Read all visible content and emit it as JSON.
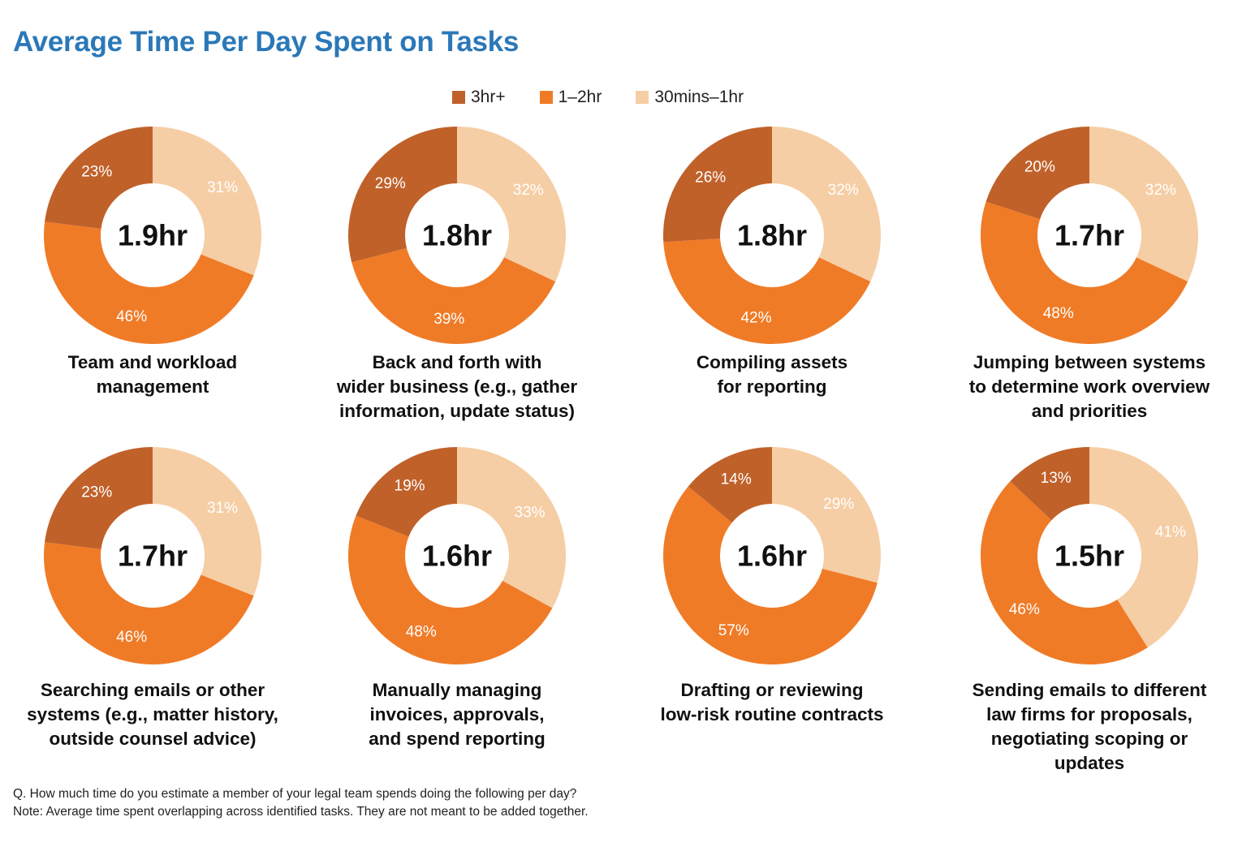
{
  "title": "Average Time Per Day Spent on Tasks",
  "legend": [
    {
      "label": "3hr+",
      "color": "#c0612a"
    },
    {
      "label": "1–2hr",
      "color": "#f07b27"
    },
    {
      "label": "30mins–1hr",
      "color": "#f6cea5"
    }
  ],
  "chart_data": [
    {
      "type": "pie",
      "title": "Team and workload management",
      "center_label": "1.9hr",
      "label_lines": [
        "Team and workload",
        "management"
      ],
      "categories": [
        "30mins–1hr",
        "1–2hr",
        "3hr+"
      ],
      "values": [
        31,
        46,
        23
      ],
      "value_labels": [
        "31%",
        "46%",
        "23%"
      ]
    },
    {
      "type": "pie",
      "title": "Back and forth with wider business (e.g., gather information, update status)",
      "center_label": "1.8hr",
      "label_lines": [
        "Back and forth with",
        "wider business (e.g., gather",
        "information, update status)"
      ],
      "categories": [
        "30mins–1hr",
        "1–2hr",
        "3hr+"
      ],
      "values": [
        32,
        39,
        29
      ],
      "value_labels": [
        "32%",
        "39%",
        "29%"
      ]
    },
    {
      "type": "pie",
      "title": "Compiling assets for reporting",
      "center_label": "1.8hr",
      "label_lines": [
        "Compiling assets",
        "for reporting"
      ],
      "categories": [
        "30mins–1hr",
        "1–2hr",
        "3hr+"
      ],
      "values": [
        32,
        42,
        26
      ],
      "value_labels": [
        "32%",
        "42%",
        "26%"
      ]
    },
    {
      "type": "pie",
      "title": "Jumping between systems to determine work overview and priorities",
      "center_label": "1.7hr",
      "label_lines": [
        "Jumping between systems",
        "to determine work overview",
        "and priorities"
      ],
      "categories": [
        "30mins–1hr",
        "1–2hr",
        "3hr+"
      ],
      "values": [
        32,
        48,
        20
      ],
      "value_labels": [
        "32%",
        "48%",
        "20%"
      ]
    },
    {
      "type": "pie",
      "title": "Searching emails or other systems (e.g., matter history, outside counsel advice)",
      "center_label": "1.7hr",
      "label_lines": [
        "Searching emails or other",
        "systems (e.g., matter history,",
        "outside counsel advice)"
      ],
      "categories": [
        "30mins–1hr",
        "1–2hr",
        "3hr+"
      ],
      "values": [
        31,
        46,
        23
      ],
      "value_labels": [
        "31%",
        "46%",
        "23%"
      ]
    },
    {
      "type": "pie",
      "title": "Manually managing invoices, approvals, and spend reporting",
      "center_label": "1.6hr",
      "label_lines": [
        "Manually managing",
        "invoices, approvals,",
        "and spend reporting"
      ],
      "categories": [
        "30mins–1hr",
        "1–2hr",
        "3hr+"
      ],
      "values": [
        33,
        48,
        19
      ],
      "value_labels": [
        "33%",
        "48%",
        "19%"
      ]
    },
    {
      "type": "pie",
      "title": "Drafting or reviewing low-risk routine contracts",
      "center_label": "1.6hr",
      "label_lines": [
        "Drafting or reviewing",
        "low-risk routine contracts"
      ],
      "categories": [
        "30mins–1hr",
        "1–2hr",
        "3hr+"
      ],
      "values": [
        29,
        57,
        14
      ],
      "value_labels": [
        "29%",
        "57%",
        "14%"
      ]
    },
    {
      "type": "pie",
      "title": "Sending emails to different law firms for proposals, negotiating scoping or updates",
      "center_label": "1.5hr",
      "label_lines": [
        "Sending emails to different",
        "law firms for proposals,",
        "negotiating scoping or",
        "updates"
      ],
      "categories": [
        "30mins–1hr",
        "1–2hr",
        "3hr+"
      ],
      "values": [
        41,
        46,
        13
      ],
      "value_labels": [
        "41%",
        "46%",
        "13%"
      ]
    }
  ],
  "footnotes": [
    "Q. How much time do you estimate a member of your legal team spends doing the following per day?",
    "Note: Average time spent overlapping across identified tasks. They are not meant to be added together."
  ]
}
